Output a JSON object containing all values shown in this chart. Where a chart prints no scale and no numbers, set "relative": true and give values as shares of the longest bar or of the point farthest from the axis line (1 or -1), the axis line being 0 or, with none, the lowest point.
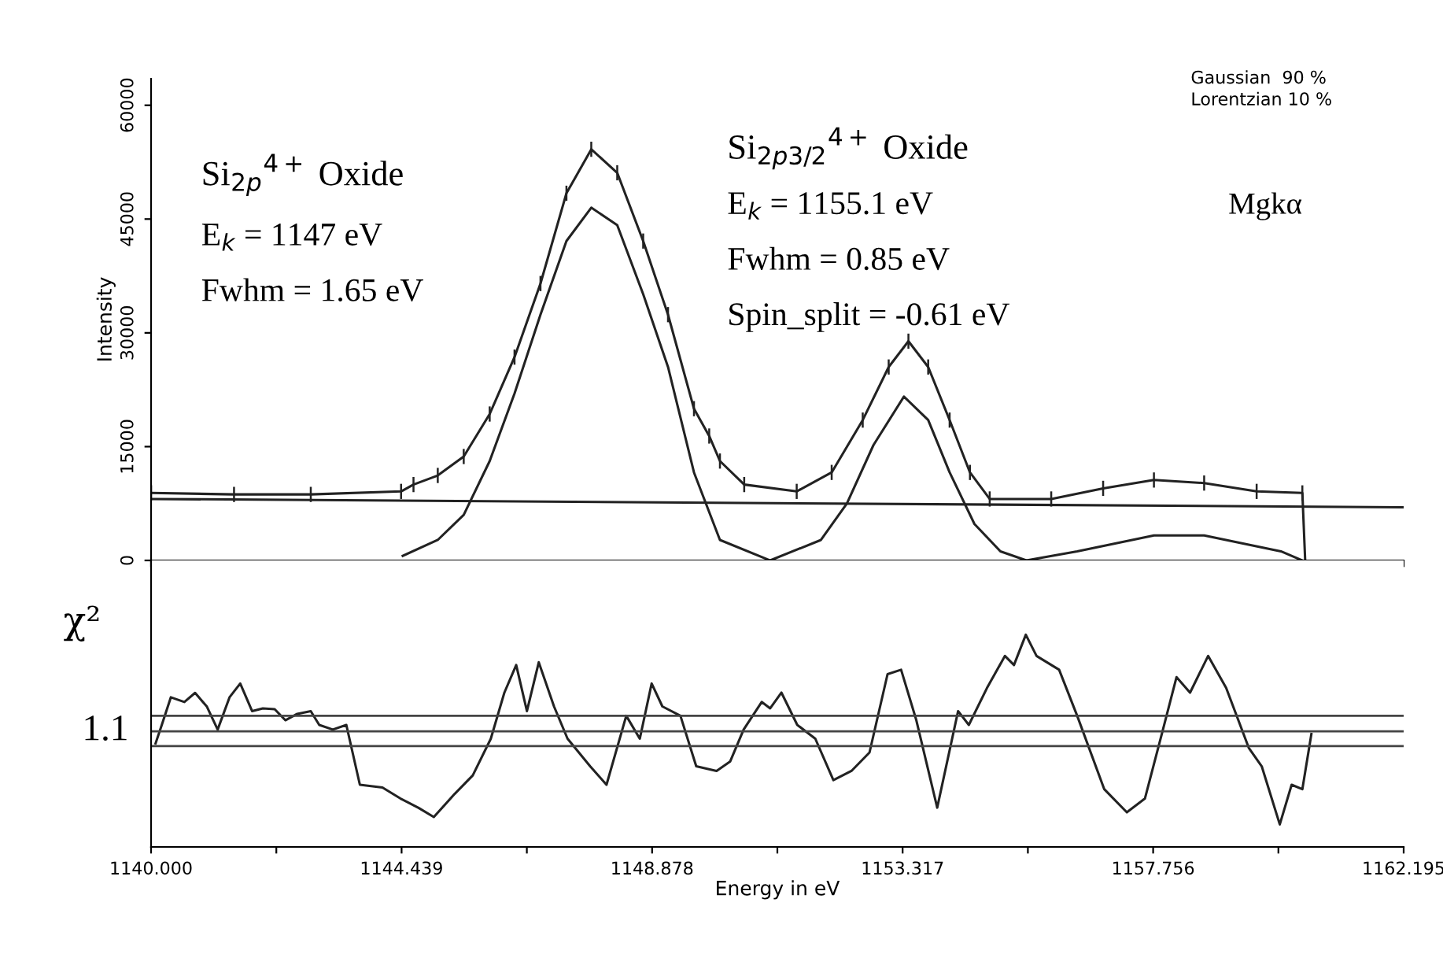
{
  "chart_data": [
    {
      "type": "line",
      "ylabel": "Intensity",
      "xlim": [
        1140,
        1162.195
      ],
      "ylim": [
        0,
        63500
      ],
      "yticks": [
        0,
        15000,
        30000,
        45000,
        60000
      ],
      "xticks": [
        {
          "value": 1140,
          "label": null
        },
        {
          "value": 1142.2195,
          "label": null
        },
        {
          "value": 1144.439,
          "label": null
        },
        {
          "value": 1146.6585,
          "label": null
        },
        {
          "value": 1148.878,
          "label": null
        },
        {
          "value": 1151.0975,
          "label": null
        },
        {
          "value": 1153.317,
          "label": null
        },
        {
          "value": 1155.5365,
          "label": null
        },
        {
          "value": 1157.756,
          "label": null
        },
        {
          "value": 1159.9755,
          "label": null
        },
        {
          "value": 1162.195,
          "label": null
        }
      ],
      "tick_labels": "y",
      "annotations": [
        "Si$_{2p}$$^{4+}$ Oxide",
        "E$_{k}$ = 1147 eV",
        "Fwhm = 1.65 eV",
        "Si$_{2p3/2}$$^{4+}$ Oxide",
        "E$_{k}$ = 1155.1 eV",
        "Fwhm = 0.85 eV",
        "Spin_split = -0.61 eV",
        "Mgkα",
        "Gaussian  90 %",
        "Lorentzian 10 %"
      ],
      "series": [
        {
          "color": "#222222",
          "x": [
            1140.0,
            1141.47,
            1142.83,
            1144.43,
            1144.65,
            1145.08,
            1145.54,
            1146.0,
            1146.44,
            1146.9,
            1147.36,
            1147.8,
            1148.26,
            1148.72,
            1149.16,
            1149.62,
            1149.89,
            1150.08,
            1150.51,
            1151.44,
            1152.06,
            1152.61,
            1153.07,
            1153.42,
            1153.77,
            1154.15,
            1154.51,
            1154.86,
            1155.95,
            1156.87,
            1157.77,
            1158.66,
            1159.59,
            1160.4,
            1160.45
          ],
          "values": [
            8900,
            8700,
            8700,
            9100,
            10000,
            11200,
            13700,
            19300,
            26800,
            36500,
            48400,
            54200,
            51100,
            42100,
            32400,
            20000,
            16400,
            13100,
            10000,
            9100,
            11600,
            18500,
            25500,
            28900,
            25500,
            18500,
            11600,
            8100,
            8100,
            9500,
            10600,
            10200,
            9100,
            8900,
            0
          ],
          "errors": [
            1000,
            1000,
            1000,
            1000,
            1000,
            1000,
            1000,
            1000,
            1000,
            1000,
            1000,
            1000,
            1000,
            1000,
            1000,
            1000,
            1000,
            1000,
            1000,
            1000,
            1000,
            1000,
            1000,
            1000,
            1000,
            1000,
            1000,
            1000,
            1000,
            1000,
            1000,
            1000,
            1000,
            1000,
            null
          ]
        },
        {
          "color": "#222222",
          "x": [
            1144.46,
            1145.08,
            1145.54,
            1146.0,
            1146.44,
            1146.9,
            1147.36,
            1147.8,
            1148.26,
            1148.72,
            1149.16,
            1149.62,
            1150.08,
            1150.97
          ],
          "values": [
            600,
            2700,
            6000,
            13100,
            22000,
            32400,
            42100,
            46500,
            44200,
            35100,
            25500,
            11600,
            2700,
            0
          ]
        },
        {
          "color": "#222222",
          "x": [
            1150.97,
            1151.87,
            1152.33,
            1152.8,
            1153.34,
            1153.77,
            1154.15,
            1154.59,
            1155.05,
            1155.51
          ],
          "values": [
            0,
            2700,
            7500,
            15200,
            21600,
            18500,
            11600,
            4800,
            1200,
            0
          ]
        },
        {
          "color": "#222222",
          "x": [
            1155.51,
            1156.41,
            1157.77,
            1158.66,
            1160.02,
            1160.4
          ],
          "values": [
            0,
            1200,
            3300,
            3300,
            1200,
            0
          ]
        },
        {
          "color": "#222222",
          "x": [
            1140,
            1162.195
          ],
          "values": [
            8100,
            7000
          ]
        }
      ]
    },
    {
      "type": "line",
      "relative": true,
      "ylabel": "χ²",
      "xlabel": "Energy in eV",
      "xlim": [
        1140,
        1162.195
      ],
      "xticks": [
        {
          "value": 1140,
          "label": "1140.000"
        },
        {
          "value": 1142.2195,
          "label": null
        },
        1144.439,
        {
          "value": 1146.6585,
          "label": null
        },
        1148.878,
        {
          "value": 1151.0975,
          "label": null
        },
        1153.317,
        {
          "value": 1155.5365,
          "label": null
        },
        1157.756,
        {
          "value": 1159.9755,
          "label": null
        },
        1162.195
      ],
      "tick_labels": "x",
      "annotations": [
        "1.1"
      ],
      "ref_lines": [
        {
          "axis": "y",
          "value": 0.618,
          "label": null,
          "color": "#444444"
        },
        {
          "axis": "y",
          "value": 0.545,
          "label": null,
          "color": "#444444"
        },
        {
          "axis": "y",
          "value": 0.475,
          "label": null,
          "color": "#444444"
        }
      ],
      "series": [
        {
          "color": "#222222",
          "x": [
            1140.08,
            1140.19,
            1140.35,
            1140.59,
            1140.78,
            1140.99,
            1141.18,
            1141.39,
            1141.58,
            1141.79,
            1141.98,
            1142.19,
            1142.38,
            1142.59,
            1142.83,
            1142.98,
            1143.22,
            1143.46,
            1143.7,
            1144.1,
            1144.42,
            1144.74,
            1145.01,
            1145.38,
            1145.7,
            1146.02,
            1146.26,
            1146.47,
            1146.66,
            1146.87,
            1147.14,
            1147.38,
            1147.78,
            1148.07,
            1148.42,
            1148.66,
            1148.87,
            1149.06,
            1149.38,
            1149.66,
            1150.02,
            1150.26,
            1150.5,
            1150.82,
            1150.97,
            1151.17,
            1151.45,
            1151.77,
            1152.09,
            1152.41,
            1152.73,
            1153.05,
            1153.29,
            1153.56,
            1153.93,
            1154.3,
            1154.49,
            1154.81,
            1155.13,
            1155.29,
            1155.5,
            1155.69,
            1156.09,
            1156.41,
            1156.89,
            1157.29,
            1157.61,
            1157.93,
            1158.17,
            1158.41,
            1158.73,
            1159.05,
            1159.45,
            1159.68,
            1160.0,
            1160.21,
            1160.4,
            1160.56
          ],
          "values": [
            0.488,
            0.575,
            0.705,
            0.683,
            0.726,
            0.661,
            0.553,
            0.705,
            0.77,
            0.64,
            0.653,
            0.649,
            0.597,
            0.627,
            0.64,
            0.575,
            0.553,
            0.575,
            0.293,
            0.28,
            0.228,
            0.184,
            0.141,
            0.25,
            0.337,
            0.51,
            0.727,
            0.857,
            0.64,
            0.87,
            0.662,
            0.51,
            0.38,
            0.293,
            0.618,
            0.51,
            0.77,
            0.662,
            0.618,
            0.38,
            0.358,
            0.402,
            0.553,
            0.683,
            0.653,
            0.727,
            0.575,
            0.51,
            0.315,
            0.358,
            0.445,
            0.814,
            0.835,
            0.597,
            0.185,
            0.64,
            0.575,
            0.748,
            0.9,
            0.857,
            1.0,
            0.9,
            0.835,
            0.618,
            0.272,
            0.163,
            0.228,
            0.553,
            0.8,
            0.727,
            0.9,
            0.749,
            0.467,
            0.38,
            0.106,
            0.293,
            0.272,
            0.532
          ]
        }
      ]
    }
  ]
}
